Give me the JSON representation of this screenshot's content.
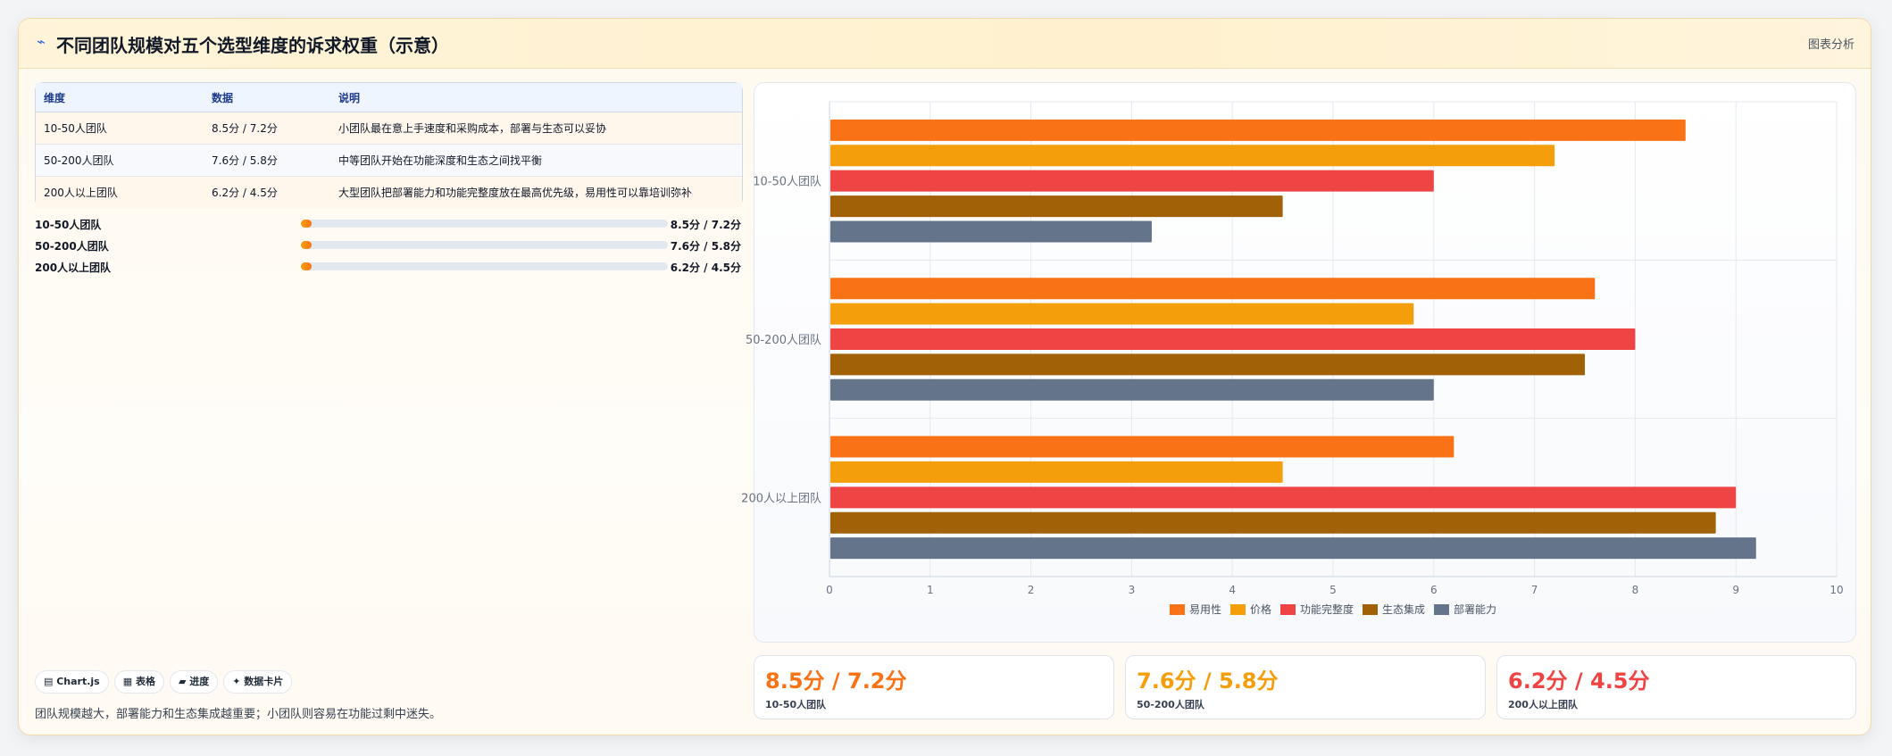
{
  "header": {
    "logo": "⌁",
    "title": "不同团队规模对五个选型维度的诉求权重（示意）",
    "tag": "图表分析"
  },
  "table": {
    "columns": [
      "维度",
      "数据",
      "说明"
    ],
    "rows": [
      [
        "10-50人团队",
        "8.5分 / 7.2分",
        "小团队最在意上手速度和采购成本，部署与生态可以妥协"
      ],
      [
        "50-200人团队",
        "7.6分 / 5.8分",
        "中等团队开始在功能深度和生态之间找平衡"
      ],
      [
        "200人以上团队",
        "6.2分 / 4.5分",
        "大型团队把部署能力和功能完整度放在最高优先级，易用性可以靠培训弥补"
      ]
    ]
  },
  "progress": [
    {
      "label": "10-50人团队",
      "value": "8.5分 / 7.2分",
      "fraction": 0.03
    },
    {
      "label": "50-200人团队",
      "value": "7.6分 / 5.8分",
      "fraction": 0.03
    },
    {
      "label": "200人以上团队",
      "value": "6.2分 / 4.5分",
      "fraction": 0.03
    }
  ],
  "chips": [
    "▤ Chart.js",
    "▦ 表格",
    "▰ 进度",
    "✦ 数据卡片"
  ],
  "note": "团队规模越大，部署能力和生态集成越重要；小团队则容易在功能过剩中迷失。",
  "stats": [
    {
      "value": "8.5分 / 7.2分",
      "label": "10-50人团队",
      "color": "#f97316"
    },
    {
      "value": "7.6分 / 5.8分",
      "label": "50-200人团队",
      "color": "#f59e0b"
    },
    {
      "value": "6.2分 / 4.5分",
      "label": "200人以上团队",
      "color": "#ef4444"
    }
  ],
  "chart_data": {
    "type": "bar",
    "orientation": "horizontal",
    "categories": [
      "10-50人团队",
      "50-200人团队",
      "200人以上团队"
    ],
    "series": [
      {
        "name": "易用性",
        "values": [
          8.5,
          7.6,
          6.2
        ],
        "color": "#f97316"
      },
      {
        "name": "价格",
        "values": [
          7.2,
          5.8,
          4.5
        ],
        "color": "#f59e0b"
      },
      {
        "name": "功能完整度",
        "values": [
          6.0,
          8.0,
          9.0
        ],
        "color": "#ef4444"
      },
      {
        "name": "生态集成",
        "values": [
          4.5,
          7.5,
          8.8
        ],
        "color": "#a16207"
      },
      {
        "name": "部署能力",
        "values": [
          3.2,
          6.0,
          9.2
        ],
        "color": "#64748b"
      }
    ],
    "xlim": [
      0,
      10
    ],
    "xticks": [
      "0",
      "1",
      "2",
      "3",
      "4",
      "5",
      "6",
      "7",
      "8",
      "9",
      "10"
    ],
    "grid": true,
    "legend": "bottom"
  }
}
